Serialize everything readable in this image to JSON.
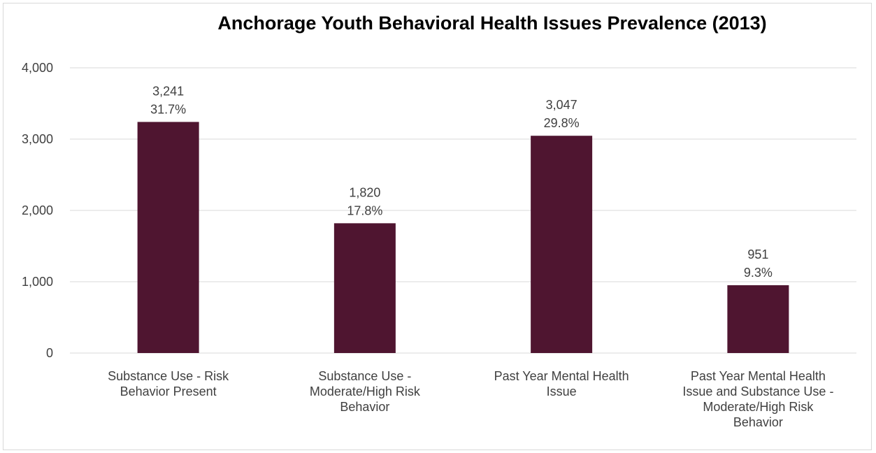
{
  "chart_data": {
    "type": "bar",
    "title": "Anchorage Youth Behavioral Health Issues Prevalence (2013)",
    "xlabel": "",
    "ylabel": "",
    "ylim": [
      0,
      4000
    ],
    "yticks": [
      0,
      1000,
      2000,
      3000,
      4000
    ],
    "ytick_labels": [
      "0",
      "1,000",
      "2,000",
      "3,000",
      "4,000"
    ],
    "grid": true,
    "legend": "none",
    "bar_color": "#4f1530",
    "categories": [
      [
        "Substance Use - Risk",
        "Behavior Present"
      ],
      [
        "Substance Use -",
        "Moderate/High Risk",
        "Behavior"
      ],
      [
        "Past Year Mental Health",
        "Issue"
      ],
      [
        "Past Year Mental Health",
        "Issue and Substance Use -",
        "Moderate/High Risk",
        "Behavior"
      ]
    ],
    "values": [
      3241,
      1820,
      3047,
      951
    ],
    "data_labels": [
      [
        "3,241",
        "31.7%"
      ],
      [
        "1,820",
        "17.8%"
      ],
      [
        "3,047",
        "29.8%"
      ],
      [
        "951",
        "9.3%"
      ]
    ]
  }
}
